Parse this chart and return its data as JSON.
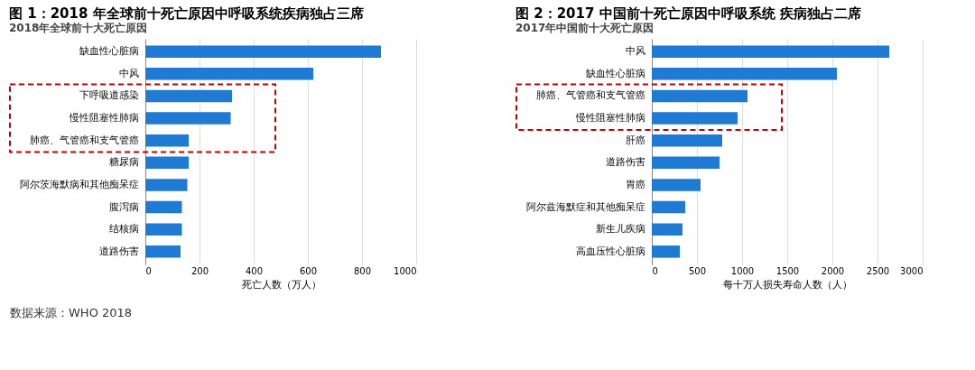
{
  "chart_data": [
    {
      "type": "bar",
      "orientation": "horizontal",
      "title": "图 1：2018 年全球前十死亡原因中呼吸系统疾病独占三席",
      "subtitle": "2018年全球前十大死亡原因",
      "xlabel": "死亡人数（万人）",
      "categories": [
        "缺血性心脏病",
        "中风",
        "下呼吸道感染",
        "慢性阻塞性肺病",
        "肺癌、气管癌和支气管癌",
        "糖尿病",
        "阿尔茨海默病和其他痴呆症",
        "腹泻病",
        "结核病",
        "道路伤害"
      ],
      "values": [
        870,
        620,
        320,
        315,
        160,
        160,
        155,
        135,
        135,
        130
      ],
      "color": "#1f7ad4",
      "xlim": [
        0,
        1000
      ],
      "xticks": [
        0,
        200,
        400,
        600,
        800,
        1000
      ],
      "grid": "x",
      "annotations": [
        "数据来源：WHO 2018"
      ]
    },
    {
      "type": "bar",
      "orientation": "horizontal",
      "title": "图 2：2017 中国前十死亡原因中呼吸系统 疾病独占二席",
      "subtitle": "2017年中国前十大死亡原因",
      "xlabel": "每十万人损失寿命人数（人）",
      "categories": [
        "中风",
        "缺血性心脏病",
        "肺癌、气管癌和支气管癌",
        "慢性阻塞性肺病",
        "肝癌",
        "道路伤害",
        "胃癌",
        "阿尔兹海默症和其他痴呆症",
        "新生儿疾病",
        "高血压性心脏病"
      ],
      "values": [
        2630,
        2050,
        1060,
        950,
        780,
        750,
        540,
        370,
        340,
        310
      ],
      "color": "#1f7ad4",
      "xlim": [
        0,
        3000
      ],
      "xticks": [
        0,
        500,
        1000,
        1500,
        2000,
        2500,
        3000
      ],
      "grid": "x"
    }
  ]
}
